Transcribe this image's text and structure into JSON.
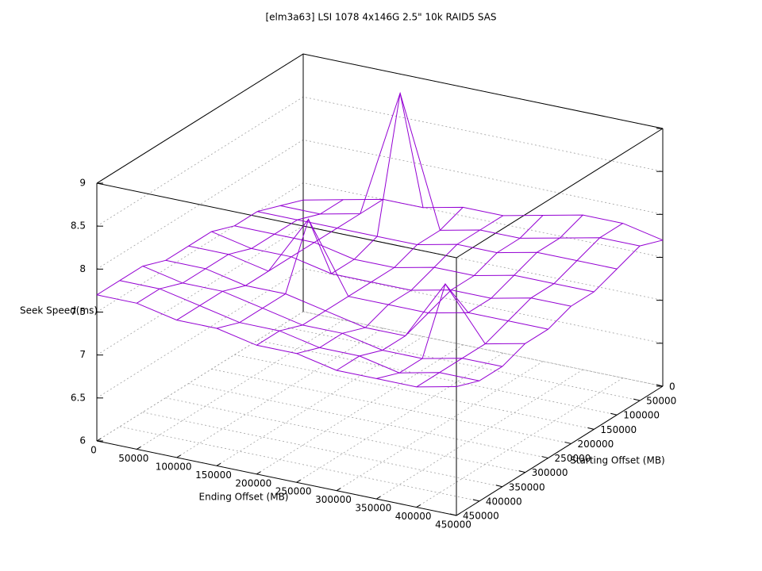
{
  "chart_data": {
    "type": "surface3d",
    "title": "[elm3a63] LSI 1078 4x146G 2.5\" 10k RAID5 SAS",
    "xlabel": "Ending Offset (MB)",
    "ylabel": "Starting Offset (MB)",
    "zlabel": "Seek Speed(ms)",
    "color": "#9400d3",
    "x": [
      0,
      50000,
      100000,
      150000,
      200000,
      250000,
      300000,
      350000,
      400000,
      450000
    ],
    "y": [
      0,
      50000,
      100000,
      150000,
      200000,
      250000,
      300000,
      350000,
      400000,
      450000
    ],
    "z": [
      [
        7.3,
        7.4,
        7.5,
        7.5,
        7.6,
        7.6,
        7.7,
        7.8,
        7.8,
        7.7
      ],
      [
        7.4,
        7.4,
        7.5,
        9.0,
        7.5,
        7.6,
        7.6,
        7.7,
        7.8,
        7.8
      ],
      [
        7.5,
        7.5,
        7.5,
        7.5,
        7.5,
        7.6,
        7.6,
        7.7,
        7.7,
        7.7
      ],
      [
        7.5,
        7.5,
        7.5,
        7.4,
        7.4,
        7.5,
        7.5,
        7.6,
        7.6,
        7.6
      ],
      [
        7.6,
        7.5,
        7.5,
        7.4,
        7.4,
        7.4,
        7.5,
        7.5,
        7.6,
        7.6
      ],
      [
        7.6,
        7.6,
        7.5,
        8.2,
        7.4,
        7.4,
        7.4,
        7.5,
        7.5,
        7.5
      ],
      [
        7.6,
        7.6,
        7.5,
        7.5,
        7.4,
        7.3,
        7.3,
        8.0,
        7.4,
        7.5
      ],
      [
        7.7,
        7.6,
        7.6,
        7.5,
        7.4,
        7.4,
        7.3,
        7.3,
        7.4,
        7.4
      ],
      [
        7.7,
        7.7,
        7.6,
        7.5,
        7.5,
        7.4,
        7.4,
        7.3,
        7.4,
        7.4
      ],
      [
        7.7,
        7.7,
        7.6,
        7.6,
        7.5,
        7.5,
        7.4,
        7.4,
        7.4,
        7.5
      ]
    ],
    "xlim": [
      0,
      450000
    ],
    "ylim": [
      0,
      450000
    ],
    "zlim": [
      6,
      9
    ],
    "xticks": [
      0,
      50000,
      100000,
      150000,
      200000,
      250000,
      300000,
      350000,
      400000,
      450000
    ],
    "yticks": [
      0,
      50000,
      100000,
      150000,
      200000,
      250000,
      300000,
      350000,
      400000,
      450000
    ],
    "zticks": [
      6,
      6.5,
      7,
      7.5,
      8,
      8.5,
      9
    ],
    "grid": true
  }
}
